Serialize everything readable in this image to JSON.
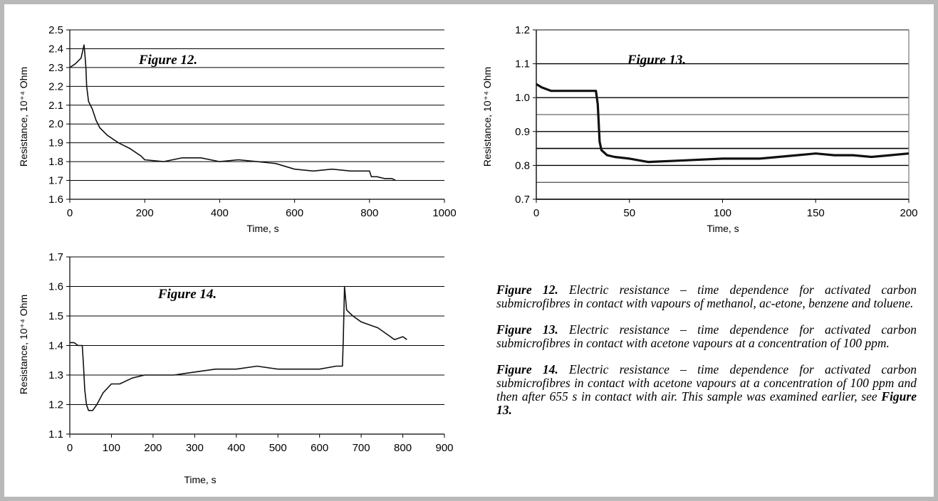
{
  "chart_data": [
    {
      "type": "line",
      "title": "Figure 12.",
      "xlabel": "Time, s",
      "ylabel": "Resistance, 10⁺⁴ Ohm",
      "xlim": [
        0,
        1000
      ],
      "ylim": [
        1.6,
        2.5
      ],
      "xticks": [
        "0",
        "200",
        "400",
        "600",
        "800",
        "1000"
      ],
      "yticks": [
        "1.6",
        "1.7",
        "1.8",
        "1.9",
        "2.0",
        "2.1",
        "2.2",
        "2.3",
        "2.4",
        "2.5"
      ],
      "grid": "horizontal",
      "series": [
        {
          "x": [
            0,
            15,
            30,
            38,
            40,
            43,
            45,
            50,
            60,
            70,
            80,
            100,
            130,
            160,
            190,
            200,
            250,
            300,
            350,
            400,
            450,
            500,
            550,
            600,
            650,
            700,
            750,
            800,
            805,
            820,
            840,
            860,
            870
          ],
          "y": [
            2.3,
            2.32,
            2.35,
            2.42,
            2.38,
            2.3,
            2.2,
            2.12,
            2.08,
            2.02,
            1.98,
            1.94,
            1.9,
            1.87,
            1.83,
            1.81,
            1.8,
            1.82,
            1.82,
            1.8,
            1.81,
            1.8,
            1.79,
            1.76,
            1.75,
            1.76,
            1.75,
            1.75,
            1.72,
            1.72,
            1.71,
            1.71,
            1.7
          ]
        }
      ]
    },
    {
      "type": "line",
      "title": "Figure 13.",
      "xlabel": "Time, s",
      "ylabel": "Resistance, 10⁺⁴ Ohm",
      "xlim": [
        0,
        200
      ],
      "ylim": [
        0.7,
        1.2
      ],
      "xticks": [
        "0",
        "50",
        "100",
        "150",
        "200"
      ],
      "yticks": [
        "0.7",
        "0.8",
        "0.9",
        "1.0",
        "1.1",
        "1.2"
      ],
      "grid": "horizontal",
      "series": [
        {
          "x": [
            0,
            3,
            8,
            15,
            20,
            25,
            30,
            32,
            33,
            34,
            35,
            38,
            42,
            50,
            60,
            80,
            100,
            120,
            140,
            150,
            160,
            170,
            180,
            190,
            200
          ],
          "y": [
            1.04,
            1.03,
            1.02,
            1.02,
            1.02,
            1.02,
            1.02,
            1.02,
            0.98,
            0.87,
            0.845,
            0.83,
            0.825,
            0.82,
            0.81,
            0.815,
            0.82,
            0.82,
            0.83,
            0.835,
            0.83,
            0.83,
            0.825,
            0.83,
            0.835
          ]
        }
      ]
    },
    {
      "type": "line",
      "title": "Figure 14.",
      "xlabel": "Time, s",
      "ylabel": "Resistance, 10⁺⁴ Ohm",
      "xlim": [
        0,
        900
      ],
      "ylim": [
        1.1,
        1.7
      ],
      "xticks": [
        "0",
        "100",
        "200",
        "300",
        "400",
        "500",
        "600",
        "700",
        "800",
        "900"
      ],
      "yticks": [
        "1.1",
        "1.2",
        "1.3",
        "1.4",
        "1.5",
        "1.6",
        "1.7"
      ],
      "grid": "horizontal",
      "series": [
        {
          "x": [
            0,
            10,
            20,
            30,
            33,
            36,
            40,
            45,
            55,
            65,
            80,
            100,
            120,
            150,
            180,
            200,
            250,
            300,
            350,
            400,
            450,
            500,
            550,
            600,
            640,
            655,
            657,
            660,
            665,
            680,
            700,
            720,
            740,
            760,
            780,
            800,
            810
          ],
          "y": [
            1.41,
            1.41,
            1.4,
            1.4,
            1.33,
            1.25,
            1.2,
            1.18,
            1.18,
            1.2,
            1.24,
            1.27,
            1.27,
            1.29,
            1.3,
            1.3,
            1.3,
            1.31,
            1.32,
            1.32,
            1.33,
            1.32,
            1.32,
            1.32,
            1.33,
            1.33,
            1.42,
            1.6,
            1.52,
            1.5,
            1.48,
            1.47,
            1.46,
            1.44,
            1.42,
            1.43,
            1.42
          ]
        }
      ]
    }
  ],
  "captions": [
    {
      "label": "Figure 12.",
      "text": " Electric resistance – time dependence for activated carbon submicrofibres in contact with vapours of methanol, ac-etone, benzene and toluene."
    },
    {
      "label": "Figure 13.",
      "text": " Electric resistance – time dependence for activated carbon submicrofibres in contact with acetone vapours at a concentration of 100 ppm."
    },
    {
      "label": "Figure 14.",
      "text": " Electric resistance – time dependence for activated carbon submicrofibres in contact with acetone vapours at a concentration of 100 ppm and then after 655 s in contact with air. This sample was examined earlier, see ",
      "ref": "Figure 13."
    }
  ]
}
